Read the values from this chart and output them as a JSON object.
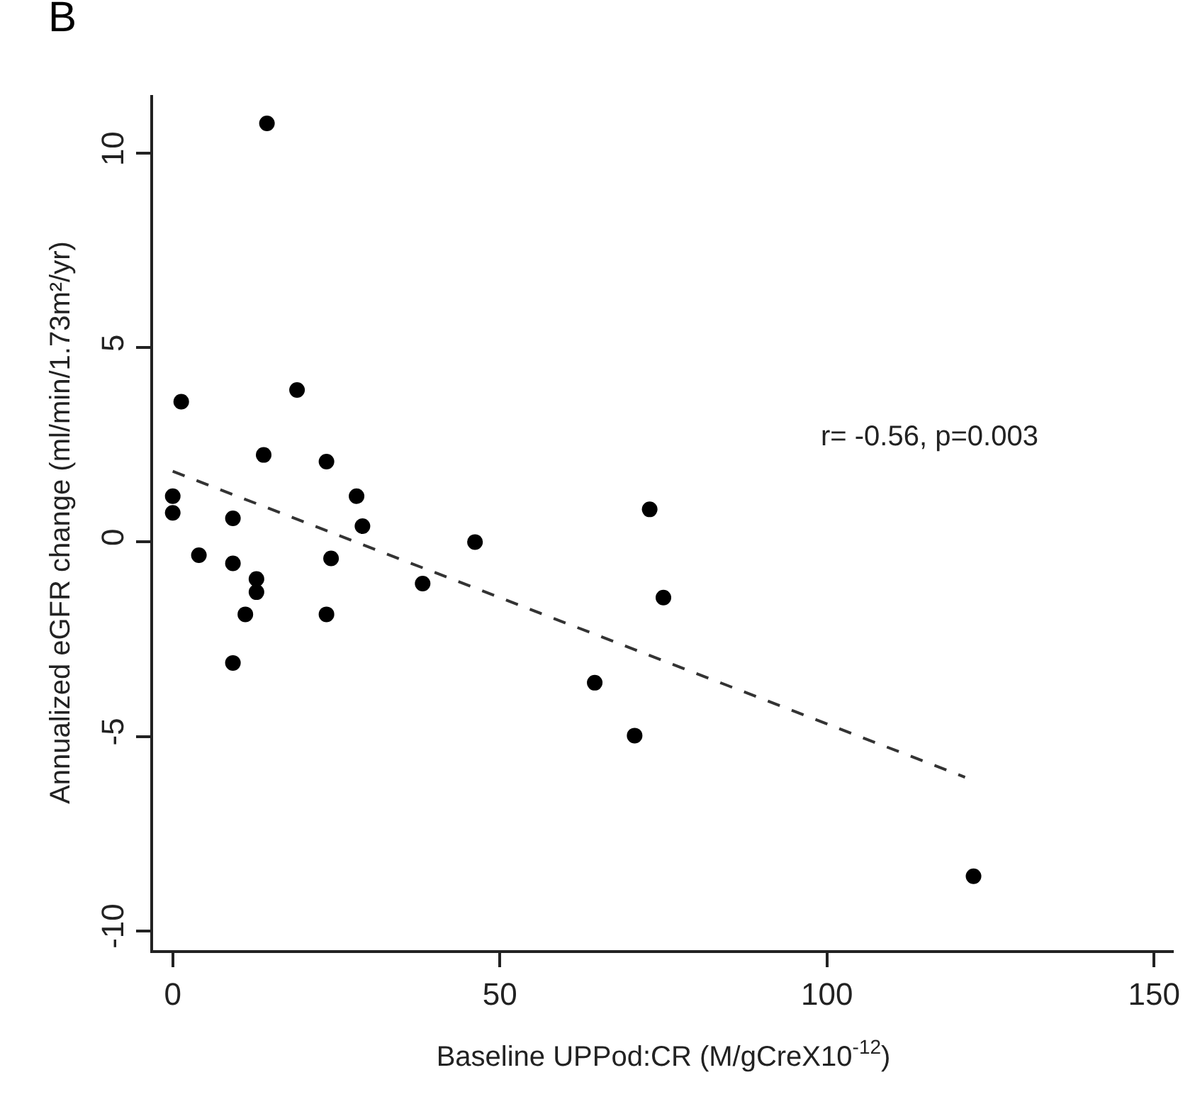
{
  "chart_data": {
    "type": "scatter",
    "xlabel": "Baseline UPPod:CR (M/gCreX10$^{-12}$)",
    "ylabel": "Annualized eGFR change (ml/min/1.73m²/yr)",
    "annotations": [
      "B",
      "r= -0.56, p=0.003"
    ],
    "xlim": [
      -3,
      153
    ],
    "xticks": [
      0,
      50,
      100,
      150
    ],
    "ylim": [
      -10.5,
      11.5
    ],
    "yticks": [
      -10,
      -5,
      0,
      5,
      10
    ],
    "grid": false,
    "legend": false,
    "marker": "circle",
    "series": [
      {
        "color": "#000000",
        "x": [
          14.4,
          1.3,
          19.0,
          13.9,
          23.5,
          0,
          0,
          28.1,
          29.0,
          9.2,
          46.2,
          4.0,
          9.2,
          24.2,
          12.8,
          12.8,
          38.2,
          11.1,
          23.5,
          9.2,
          72.9,
          75.0,
          64.5,
          70.6,
          122.4
        ],
        "values": [
          10.77,
          3.61,
          3.91,
          2.24,
          2.07,
          1.18,
          0.75,
          1.18,
          0.41,
          0.61,
          0,
          -0.34,
          -0.55,
          -0.42,
          -0.95,
          -1.29,
          -1.07,
          -1.86,
          -1.86,
          -3.11,
          0.84,
          -1.43,
          -3.62,
          -4.98,
          -8.6
        ]
      },
      {
        "type": "line",
        "color": "#333333",
        "line_style": "dashed",
        "marker": "none",
        "x": [
          0,
          121.1
        ],
        "values": [
          1.82,
          -6.05
        ]
      }
    ]
  }
}
